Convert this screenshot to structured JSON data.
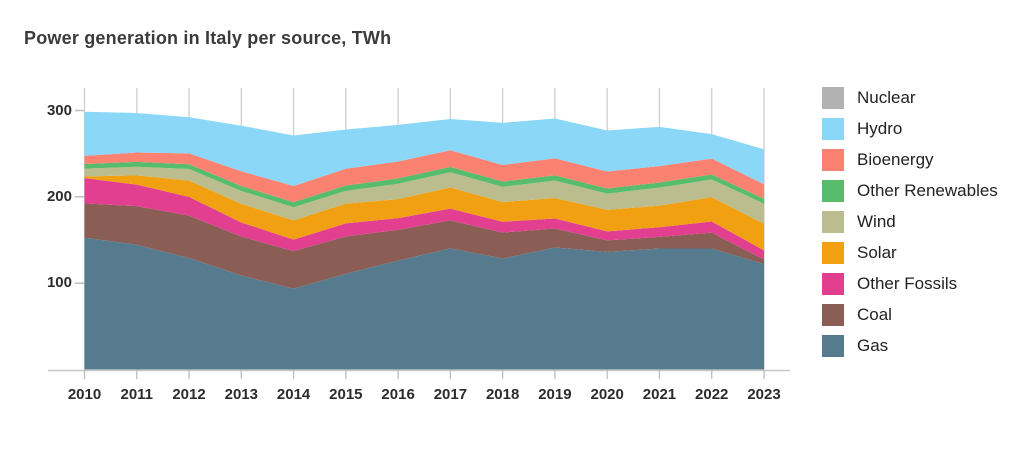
{
  "page": {
    "title": "Power generation in Italy per source, TWh"
  },
  "chart_data": {
    "type": "area",
    "stacked": true,
    "title": "Power generation in Italy per source, TWh",
    "unit": "TWh",
    "x": [
      "2010",
      "2011",
      "2012",
      "2013",
      "2014",
      "2015",
      "2016",
      "2017",
      "2018",
      "2019",
      "2020",
      "2021",
      "2022",
      "2023"
    ],
    "yticks": [
      100,
      200,
      300
    ],
    "ylim": [
      0,
      325
    ],
    "grid": "vertical year gridlines, light gray",
    "legend_position": "right",
    "colors": {
      "grid": "#cccccc",
      "axis": "#c6c6c6",
      "tick": "#bdbdbd",
      "text": "#2c2c2c",
      "title": "#3b3b3b"
    },
    "series": [
      {
        "name": "Gas",
        "color": "#567b8f",
        "values": [
          152.7,
          144.5,
          129.1,
          108.9,
          93.6,
          110.9,
          126.1,
          140.3,
          128.5,
          141.3,
          136.2,
          140.1,
          140.2,
          122.1
        ]
      },
      {
        "name": "Coal",
        "color": "#8a5d55",
        "values": [
          39.7,
          44.7,
          49.1,
          45.1,
          43.5,
          43.2,
          35.6,
          32.4,
          30.1,
          22.0,
          13.3,
          13.5,
          18.4,
          5.3
        ]
      },
      {
        "name": "Other Fossils",
        "color": "#e23f91",
        "values": [
          29.3,
          24.9,
          21.7,
          16.3,
          13.4,
          15.1,
          13.6,
          13.7,
          12.6,
          11.6,
          10.5,
          11.2,
          12.9,
          10.5
        ]
      },
      {
        "name": "Solar",
        "color": "#f1a011",
        "values": [
          1.9,
          10.8,
          18.9,
          21.6,
          22.3,
          22.9,
          22.1,
          24.4,
          22.7,
          23.7,
          24.9,
          25.0,
          28.1,
          30.7
        ]
      },
      {
        "name": "Wind",
        "color": "#bbbd8e",
        "values": [
          9.1,
          9.9,
          13.4,
          14.9,
          15.2,
          14.8,
          17.7,
          17.7,
          17.7,
          20.2,
          18.8,
          20.9,
          20.5,
          23.4
        ]
      },
      {
        "name": "Other Renewables",
        "color": "#58bc6d",
        "values": [
          5.4,
          5.7,
          5.6,
          5.7,
          5.9,
          6.2,
          6.3,
          6.2,
          6.1,
          6.1,
          6.0,
          5.9,
          5.8,
          5.7
        ]
      },
      {
        "name": "Bioenergy",
        "color": "#fb8271",
        "values": [
          9.4,
          10.8,
          12.5,
          17.1,
          18.7,
          19.4,
          19.5,
          19.3,
          19.2,
          19.6,
          19.6,
          19.0,
          18.3,
          16.9
        ]
      },
      {
        "name": "Hydro",
        "color": "#8bd7f8",
        "values": [
          51.1,
          45.8,
          41.9,
          52.8,
          58.5,
          45.5,
          42.4,
          36.2,
          48.8,
          46.3,
          47.6,
          45.4,
          28.4,
          40.5
        ]
      },
      {
        "name": "Nuclear",
        "color": "#b2b2b2",
        "values": [
          0,
          0,
          0,
          0,
          0,
          0,
          0,
          0,
          0,
          0,
          0,
          0,
          0,
          0
        ]
      }
    ]
  },
  "legend": {
    "items": [
      {
        "label": "Nuclear",
        "color": "#b2b2b2"
      },
      {
        "label": "Hydro",
        "color": "#8bd7f8"
      },
      {
        "label": "Bioenergy",
        "color": "#fb8271"
      },
      {
        "label": "Other Renewables",
        "color": "#58bc6d"
      },
      {
        "label": "Wind",
        "color": "#bbbd8e"
      },
      {
        "label": "Solar",
        "color": "#f1a011"
      },
      {
        "label": "Other Fossils",
        "color": "#e23f91"
      },
      {
        "label": "Coal",
        "color": "#8a5d55"
      },
      {
        "label": "Gas",
        "color": "#567b8f"
      }
    ]
  }
}
